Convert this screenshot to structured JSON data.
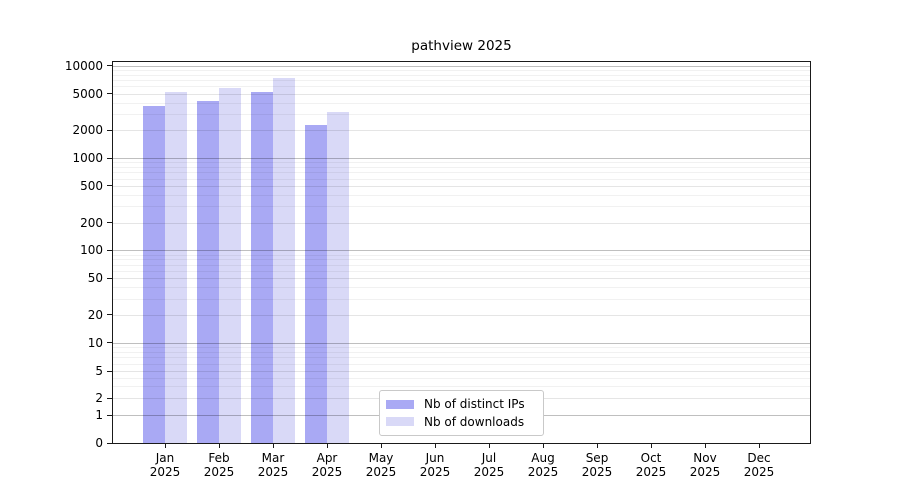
{
  "window": {
    "background": "#ffffff"
  },
  "chart_data": {
    "type": "bar",
    "title": "pathview 2025",
    "categories": [
      "Jan 2025",
      "Feb 2025",
      "Mar 2025",
      "Apr 2025",
      "May 2025",
      "Jun 2025",
      "Jul 2025",
      "Aug 2025",
      "Sep 2025",
      "Oct 2025",
      "Nov 2025",
      "Dec 2025"
    ],
    "series": [
      {
        "name": "Nb of distinct IPs",
        "color": "#a9a9f4",
        "values": [
          3700,
          4150,
          5170,
          2300,
          0,
          0,
          0,
          0,
          0,
          0,
          0,
          0
        ]
      },
      {
        "name": "Nb of downloads",
        "color": "#d9d9f7",
        "values": [
          5260,
          5800,
          7350,
          3130,
          0,
          0,
          0,
          0,
          0,
          0,
          0,
          0
        ]
      }
    ],
    "xlabel": "",
    "ylabel": "",
    "y_scale": "symlog",
    "y_ticks": [
      10000,
      5000,
      2000,
      1000,
      500,
      200,
      100,
      50,
      20,
      10,
      5,
      2,
      1,
      0
    ],
    "ylim": [
      0,
      11000
    ],
    "grid": "horizontal, major and minor, drawn over bars",
    "legend_position": "inside lower-center",
    "axis_color": "#1a1a1a",
    "grid_major_color": "#bfbfbf",
    "grid_minor_color": "#f0f0f0"
  }
}
